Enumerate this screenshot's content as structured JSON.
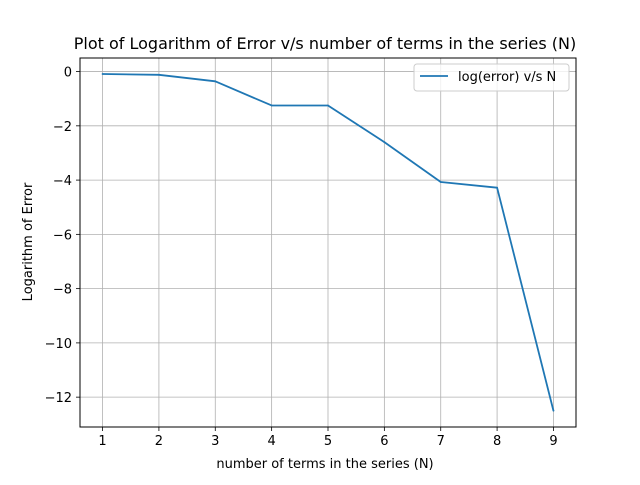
{
  "chart_data": {
    "type": "line",
    "title": "Plot of  Logarithm of Error v/s number of terms in the series (N)",
    "xlabel": "number of terms in the series (N)",
    "ylabel": "Logarithm of Error",
    "x": [
      1,
      2,
      3,
      4,
      5,
      6,
      7,
      8,
      9
    ],
    "series": [
      {
        "name": "log(error) v/s N",
        "color": "#1f77b4",
        "values": [
          -0.09,
          -0.12,
          -0.36,
          -1.25,
          -1.25,
          -2.6,
          -4.07,
          -4.28,
          -12.5
        ]
      }
    ],
    "xticks": [
      "1",
      "2",
      "3",
      "4",
      "5",
      "6",
      "7",
      "8",
      "9"
    ],
    "yticks": [
      "0",
      "−2",
      "−4",
      "−6",
      "−8",
      "−10",
      "−12"
    ],
    "ytick_values": [
      0,
      -2,
      -4,
      -6,
      -8,
      -10,
      -12
    ],
    "xlim": [
      0.6,
      9.4
    ],
    "ylim": [
      -13.1,
      0.5
    ],
    "grid": true,
    "legend_position": "top-right"
  }
}
